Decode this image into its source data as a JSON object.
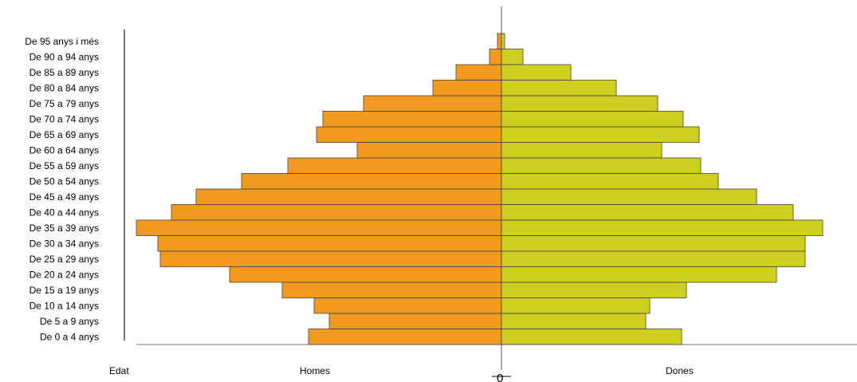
{
  "chart_data": {
    "type": "bar",
    "orientation": "horizontal",
    "layout": "population-pyramid",
    "categories": [
      "De 0 a 4 anys",
      "De 5 a 9 anys",
      "De 10 a 14 anys",
      "De 15 a 19 anys",
      "De 20 a 24 anys",
      "De 25 a 29 anys",
      "De 30 a 34 anys",
      "De 35 a 39 anys",
      "De 40 a 44 anys",
      "De 45 a 49 anys",
      "De 50 a 54 anys",
      "De 55 a 59 anys",
      "De 60 a 64 anys",
      "De 65 a 69 anys",
      "De 70 a 74 anys",
      "De 75 a 79 anys",
      "De 80 a 84 anys",
      "De 85 a 89 anys",
      "De 90 a 94 anys",
      "De 95 anys i més"
    ],
    "series": [
      {
        "name": "Homes",
        "color": "#f19a1e",
        "values": [
          242,
          216,
          235,
          275,
          341,
          428,
          431,
          458,
          414,
          383,
          326,
          268,
          181,
          232,
          224,
          173,
          86,
          57,
          15,
          5
        ]
      },
      {
        "name": "Dones",
        "color": "#cdd01f",
        "values": [
          226,
          181,
          186,
          232,
          345,
          381,
          381,
          403,
          366,
          320,
          272,
          250,
          201,
          248,
          228,
          196,
          144,
          87,
          27,
          4
        ]
      }
    ],
    "x_axis_label": "Edat",
    "zero_label": "0",
    "grid": false,
    "legend": "none"
  }
}
